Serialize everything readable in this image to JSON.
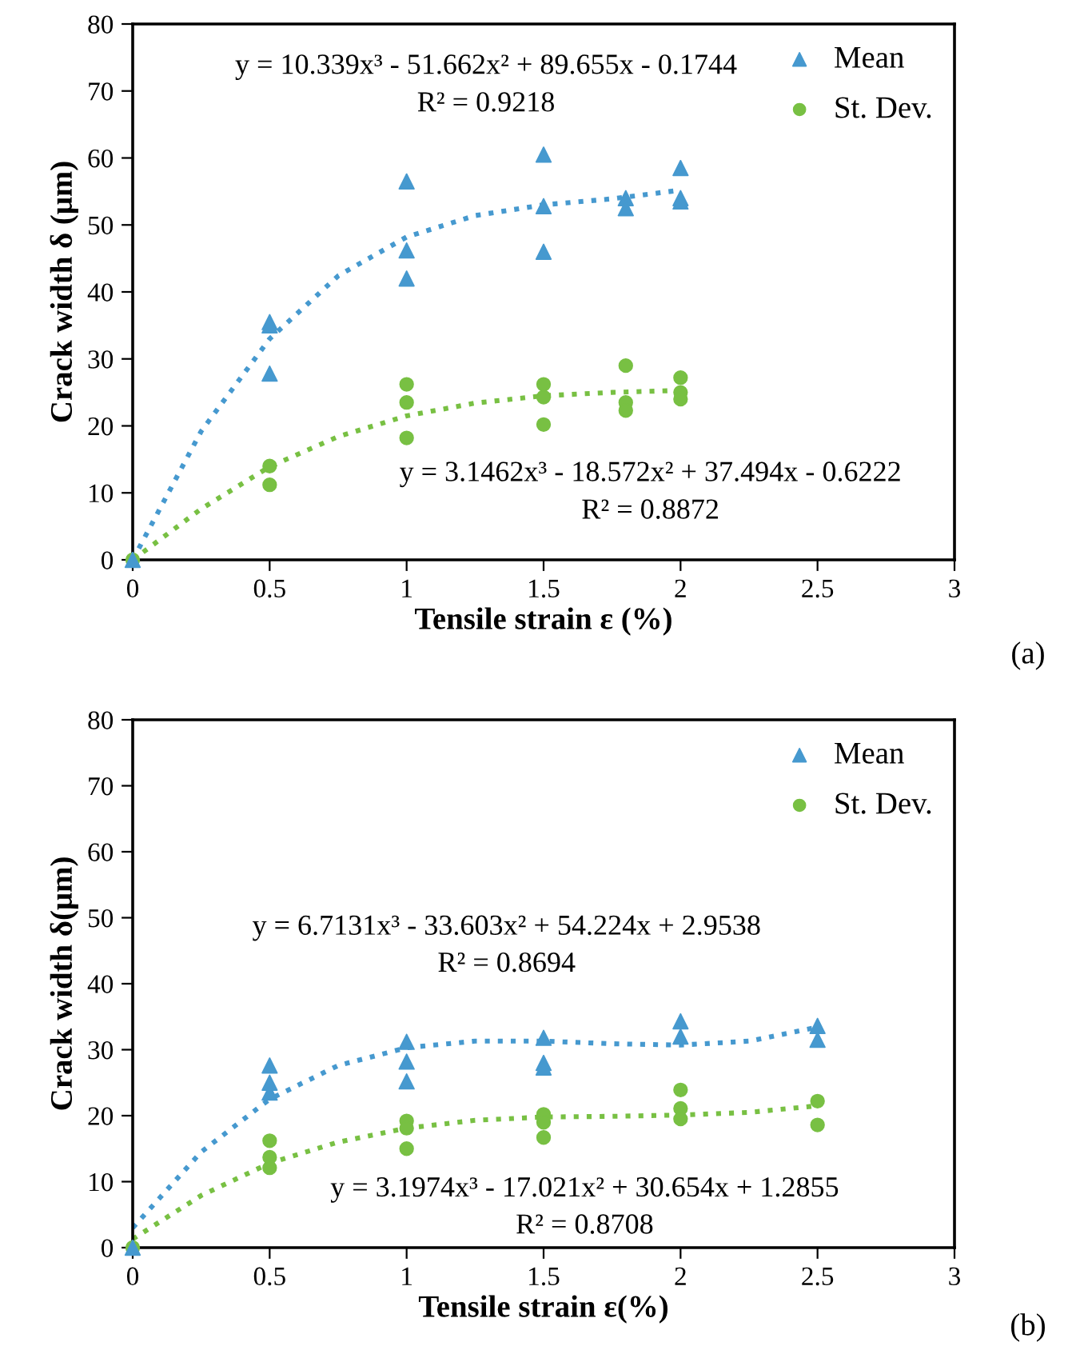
{
  "chart_data": [
    {
      "type": "scatter",
      "xlabel": "Tensile strain ε (%)",
      "ylabel": "Crack width δ (μm)",
      "xlim": [
        0,
        3
      ],
      "ylim": [
        0,
        80
      ],
      "xticks": [
        0,
        0.5,
        1,
        1.5,
        2,
        2.5,
        3
      ],
      "yticks": [
        0,
        10,
        20,
        30,
        40,
        50,
        60,
        70,
        80
      ],
      "grid": false,
      "legend": "top right",
      "annotations": [
        "y = 10.339x³ - 51.662x² + 89.655x - 0.1744",
        "R² = 0.9218",
        "y = 3.1462x³ - 18.572x² + 37.494x - 0.6222",
        "R² = 0.8872",
        "(a)"
      ],
      "series": [
        {
          "name": "Mean",
          "color": "#4699cf",
          "marker": "triangle",
          "x": [
            0,
            0.5,
            0.5,
            0.5,
            1,
            1,
            1,
            1.5,
            1.5,
            1.5,
            1.8,
            1.8,
            2,
            2,
            2
          ],
          "values": [
            0,
            35.5,
            35,
            27.8,
            56.5,
            46.2,
            42,
            60.5,
            52.8,
            46,
            54,
            52.5,
            58.5,
            54,
            53.5
          ]
        },
        {
          "name": "St. Dev.",
          "color": "#78c043",
          "marker": "circle",
          "x": [
            0,
            0.5,
            0.5,
            1,
            1,
            1,
            1.5,
            1.5,
            1.5,
            1.8,
            1.8,
            1.8,
            2,
            2,
            2
          ],
          "values": [
            0,
            14,
            11.2,
            26.2,
            23.5,
            18.2,
            26.2,
            24.3,
            20.2,
            29,
            23.5,
            22.3,
            27.2,
            25,
            24
          ]
        },
        {
          "type": "line",
          "color": "#4699cf",
          "line_style": "dotted",
          "marker": "none",
          "x": [
            0,
            0.25,
            0.5,
            0.75,
            1,
            1.25,
            1.5,
            1.75,
            2
          ],
          "values": [
            0,
            19.2,
            33,
            42.4,
            48.2,
            51.4,
            53,
            53.9,
            55.2
          ]
        },
        {
          "type": "line",
          "color": "#78c043",
          "line_style": "dotted",
          "marker": "none",
          "x": [
            0,
            0.25,
            0.5,
            0.75,
            1,
            1.25,
            1.5,
            1.75,
            2
          ],
          "values": [
            0,
            7.6,
            13.9,
            18.4,
            21.5,
            23.4,
            24.5,
            25,
            25.3
          ]
        }
      ]
    },
    {
      "type": "scatter",
      "xlabel": "Tensile strain ε(%)",
      "ylabel": "Crack width δ(μm)",
      "xlim": [
        0,
        3
      ],
      "ylim": [
        0,
        80
      ],
      "xticks": [
        0,
        0.5,
        1,
        1.5,
        2,
        2.5,
        3
      ],
      "yticks": [
        0,
        10,
        20,
        30,
        40,
        50,
        60,
        70,
        80
      ],
      "grid": false,
      "legend": "top right",
      "annotations": [
        "y = 6.7131x³ - 33.603x² + 54.224x + 2.9538",
        "R² = 0.8694",
        "y = 3.1974x³ - 17.021x² + 30.654x + 1.2855",
        "R² = 0.8708",
        "(b)"
      ],
      "series": [
        {
          "name": "Mean",
          "color": "#4699cf",
          "marker": "triangle",
          "x": [
            0,
            0.5,
            0.5,
            0.5,
            1,
            1,
            1,
            1.5,
            1.5,
            1.5,
            2,
            2,
            2.5,
            2.5
          ],
          "values": [
            0,
            27.6,
            25,
            23.5,
            31.2,
            28.2,
            25.2,
            31.8,
            28,
            27.3,
            34.3,
            32,
            33.6,
            31.5
          ]
        },
        {
          "name": "St. Dev.",
          "color": "#78c043",
          "marker": "circle",
          "x": [
            0,
            0.5,
            0.5,
            0.5,
            1,
            1,
            1,
            1.5,
            1.5,
            1.5,
            2,
            2,
            2,
            2.5,
            2.5
          ],
          "values": [
            0,
            16.2,
            13.7,
            12.1,
            19.2,
            18.1,
            15,
            20.2,
            19,
            16.7,
            23.9,
            21.1,
            19.5,
            22.2,
            18.6
          ]
        },
        {
          "type": "line",
          "color": "#4699cf",
          "line_style": "dotted",
          "marker": "none",
          "x": [
            0,
            0.25,
            0.5,
            0.75,
            1,
            1.25,
            1.5,
            1.75,
            2,
            2.25,
            2.5
          ],
          "values": [
            3,
            14.5,
            22.5,
            27.6,
            30.3,
            31.3,
            31.3,
            30.9,
            30.7,
            31.3,
            33.4
          ]
        },
        {
          "type": "line",
          "color": "#78c043",
          "line_style": "dotted",
          "marker": "none",
          "x": [
            0,
            0.25,
            0.5,
            0.75,
            1,
            1.25,
            1.5,
            1.75,
            2,
            2.25,
            2.5
          ],
          "values": [
            1.3,
            7.9,
            12.8,
            16,
            18.1,
            19.3,
            19.8,
            19.9,
            20.1,
            20.5,
            21.5
          ]
        }
      ]
    }
  ]
}
